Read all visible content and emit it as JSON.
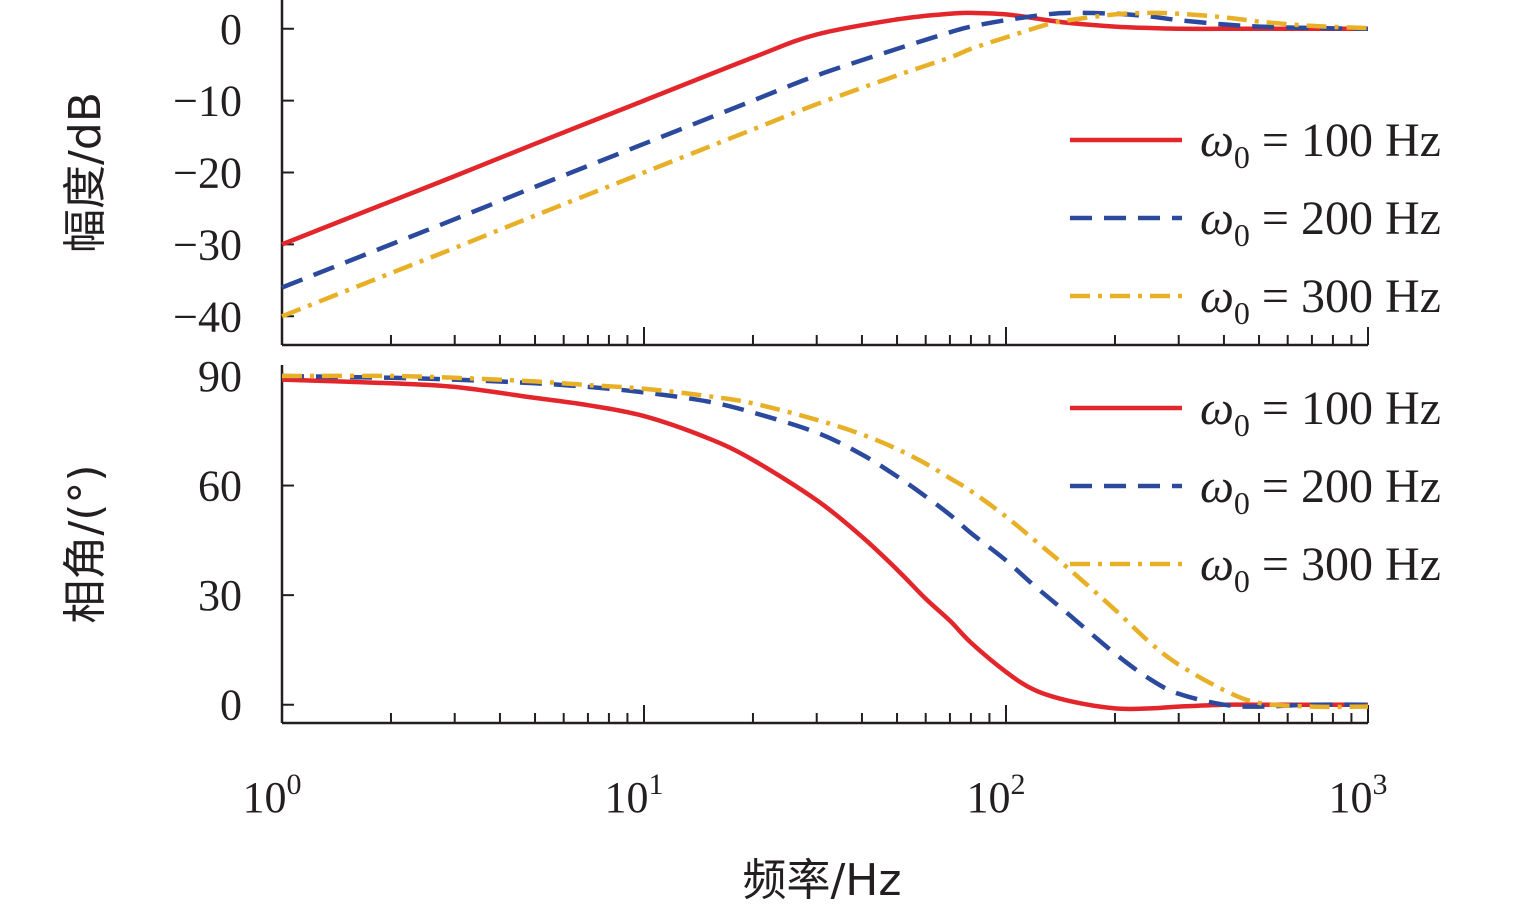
{
  "chart_data": [
    {
      "type": "line",
      "panel": "magnitude",
      "ylabel": "幅度/dB",
      "xlabel": "",
      "xscale": "log",
      "xlim": [
        1,
        1000
      ],
      "ylim": [
        -44,
        4
      ],
      "yticks": [
        0,
        -10,
        -20,
        -30,
        -40
      ],
      "ytick_labels": [
        "0",
        "−10",
        "−20",
        "−30",
        "−40"
      ],
      "legend_position": "right",
      "x": [
        1,
        2,
        3,
        5,
        10,
        20,
        30,
        50,
        70,
        80,
        100,
        130,
        150,
        200,
        250,
        300,
        400,
        500,
        700,
        1000
      ],
      "series": [
        {
          "name": "ω0 = 100 Hz",
          "legend_symbol": "ω",
          "legend_sub": "0",
          "legend_rest": " = 100 Hz",
          "color": "#e2262b",
          "dash": "",
          "values": [
            -30,
            -24,
            -20.5,
            -16,
            -10,
            -4,
            -0.8,
            1.3,
            2.1,
            2.2,
            2.0,
            1.2,
            0.8,
            0.3,
            0.1,
            0,
            0,
            0,
            0,
            0
          ]
        },
        {
          "name": "ω0 = 200 Hz",
          "legend_symbol": "ω",
          "legend_sub": "0",
          "legend_rest": " = 200 Hz",
          "color": "#2b4a9e",
          "dash": "22,12",
          "values": [
            -36,
            -30,
            -26.5,
            -22,
            -16,
            -10,
            -6.5,
            -2.8,
            -0.5,
            0.3,
            1.2,
            2.0,
            2.2,
            2.1,
            1.7,
            1.2,
            0.6,
            0.3,
            0.1,
            0
          ]
        },
        {
          "name": "ω0 = 300 Hz",
          "legend_symbol": "ω",
          "legend_sub": "0",
          "legend_rest": " = 300 Hz",
          "color": "#e8b027",
          "dash": "20,8,4,8",
          "values": [
            -40,
            -34,
            -30.5,
            -26,
            -20,
            -14,
            -10.5,
            -6.5,
            -4,
            -2.8,
            -1.2,
            0.6,
            1.2,
            2.0,
            2.2,
            2.1,
            1.6,
            1.0,
            0.4,
            0.1
          ]
        }
      ]
    },
    {
      "type": "line",
      "panel": "phase",
      "ylabel": "相角/(°)",
      "xlabel": "频率/Hz",
      "xscale": "log",
      "xlim": [
        1,
        1000
      ],
      "ylim": [
        -5,
        93
      ],
      "yticks": [
        90,
        60,
        30,
        0
      ],
      "ytick_labels": [
        "90",
        "60",
        "30",
        "0"
      ],
      "xticks": [
        1,
        10,
        100,
        1000
      ],
      "xtick_bases": [
        "10",
        "10",
        "10",
        "10"
      ],
      "xtick_exps": [
        "0",
        "1",
        "2",
        "3"
      ],
      "legend_position": "right",
      "x": [
        1,
        2,
        3,
        5,
        7,
        10,
        15,
        20,
        30,
        40,
        50,
        60,
        70,
        80,
        100,
        120,
        150,
        200,
        250,
        300,
        400,
        500,
        700,
        1000
      ],
      "series": [
        {
          "name": "ω0 = 100 Hz",
          "legend_symbol": "ω",
          "legend_sub": "0",
          "legend_rest": " = 100 Hz",
          "color": "#e2262b",
          "dash": "",
          "values": [
            89,
            88,
            87,
            84,
            82,
            79,
            73,
            67,
            56,
            46,
            37,
            29,
            23,
            17,
            9,
            4,
            1,
            -1,
            -1,
            -0.5,
            0,
            0,
            0,
            0
          ]
        },
        {
          "name": "ω0 = 200 Hz",
          "legend_symbol": "ω",
          "legend_sub": "0",
          "legend_rest": " = 200 Hz",
          "color": "#2b4a9e",
          "dash": "22,12",
          "values": [
            90,
            89.5,
            89,
            88,
            87,
            85.5,
            83,
            80,
            74.5,
            68.5,
            62.5,
            57,
            52,
            47,
            39.5,
            32.5,
            24.5,
            14,
            7,
            3,
            0,
            -0.5,
            0,
            0
          ]
        },
        {
          "name": "ω0 = 300 Hz",
          "legend_symbol": "ω",
          "legend_sub": "0",
          "legend_rest": " = 300 Hz",
          "color": "#e8b027",
          "dash": "20,8,4,8",
          "values": [
            90,
            90,
            89.5,
            88.5,
            87.5,
            86.5,
            84.5,
            82.5,
            78,
            74,
            70,
            66,
            62,
            58.5,
            51.5,
            45,
            37,
            26,
            17,
            11,
            4,
            0.5,
            -0.5,
            -0.5
          ]
        }
      ]
    }
  ]
}
